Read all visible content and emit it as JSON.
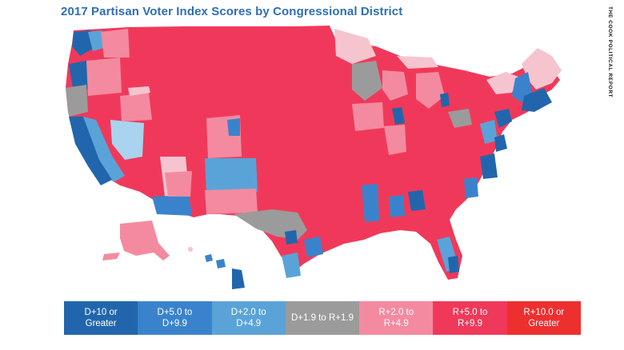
{
  "title": "2017 Partisan Voter Index Scores by Congressional District",
  "source": "THE COOK POLITICAL REPORT",
  "colors": {
    "d10": "#2166ac",
    "d5": "#3a83cc",
    "d2": "#5aa3d8",
    "d2_light": "#a9d3ee",
    "even": "#9b9b9b",
    "r2": "#f48aa0",
    "r2_light": "#f6c4cf",
    "r5": "#f0395a",
    "r10": "#ee2f2f"
  },
  "legend": [
    {
      "label": "D+10 or\nGreater",
      "color": "#2166ac"
    },
    {
      "label": "D+5.0 to\nD+9.9",
      "color": "#3a83cc"
    },
    {
      "label": "D+2.0 to\nD+4.9",
      "color": "#5aa3d8"
    },
    {
      "label": "D+1.9 to R+1.9",
      "color": "#9b9b9b"
    },
    {
      "label": "R+2.0 to\nR+4.9",
      "color": "#f48aa0"
    },
    {
      "label": "R+5.0 to\nR+9.9",
      "color": "#f0395a"
    },
    {
      "label": "R+10.0 or\nGreater",
      "color": "#ee2f2f"
    }
  ]
}
